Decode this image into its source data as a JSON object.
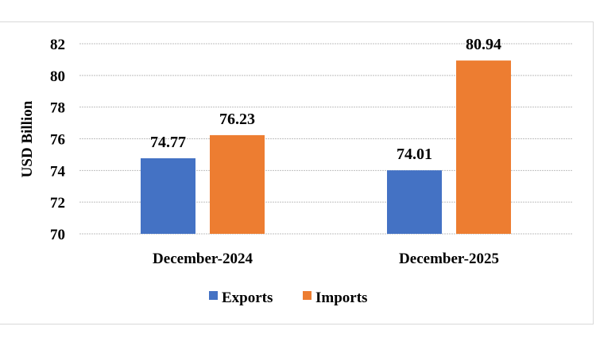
{
  "chart_data": {
    "type": "bar",
    "title": "",
    "xlabel": "",
    "ylabel": "USD Billion",
    "ylim": [
      70,
      82
    ],
    "yticks": [
      70,
      72,
      74,
      76,
      78,
      80,
      82
    ],
    "grid": true,
    "legend_position": "bottom",
    "categories": [
      "December-2024",
      "December-2025"
    ],
    "series": [
      {
        "name": "Exports",
        "values": [
          74.77,
          74.01
        ],
        "color": "#4472C4",
        "labels": [
          "74.77",
          "74.01"
        ]
      },
      {
        "name": "Imports",
        "values": [
          76.23,
          80.94
        ],
        "color": "#ED7D31",
        "labels": [
          "76.23",
          "80.94"
        ]
      }
    ]
  }
}
